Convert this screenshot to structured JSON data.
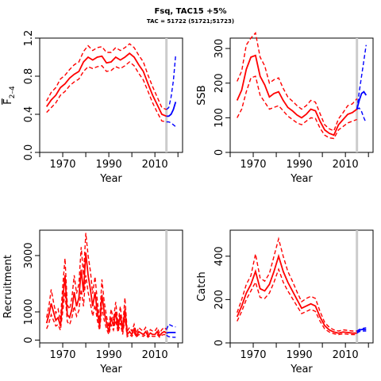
{
  "header": {
    "title": "Fsq, TAC15 +5%",
    "subtitle": "TAC = 51722 (51721;51723)"
  },
  "colors": {
    "historical": "#ff0000",
    "projection": "#0000ff",
    "reference_line": "#cccccc",
    "axis": "#000000"
  },
  "chart_data": [
    {
      "type": "line",
      "name": "fbar",
      "xlabel": "Year",
      "ylabel": "F2-4",
      "ylabel_main": "F",
      "ylabel_sub": "2–4",
      "xlim": [
        1960,
        2022
      ],
      "ylim": [
        0,
        1.2
      ],
      "xticks": [
        1970,
        1990,
        2010
      ],
      "yticks": [
        0.0,
        0.4,
        0.8,
        1.2
      ],
      "ytick_labels": [
        "0.0",
        "0.4",
        "0.8",
        "1.2"
      ],
      "reference_year": 2015,
      "historical": {
        "x": [
          1963,
          1965,
          1967,
          1969,
          1971,
          1973,
          1975,
          1977,
          1979,
          1981,
          1983,
          1985,
          1987,
          1989,
          1991,
          1993,
          1995,
          1997,
          1999,
          2001,
          2003,
          2005,
          2007,
          2009,
          2011,
          2013,
          2015
        ],
        "median": [
          0.48,
          0.55,
          0.6,
          0.68,
          0.72,
          0.78,
          0.82,
          0.85,
          0.95,
          1.0,
          0.97,
          1.0,
          1.01,
          0.94,
          0.95,
          1.0,
          0.97,
          1.0,
          1.04,
          1.0,
          0.92,
          0.85,
          0.72,
          0.6,
          0.5,
          0.4,
          0.38
        ],
        "lower": [
          0.42,
          0.47,
          0.52,
          0.6,
          0.64,
          0.7,
          0.74,
          0.77,
          0.85,
          0.9,
          0.88,
          0.9,
          0.91,
          0.85,
          0.86,
          0.9,
          0.88,
          0.91,
          0.95,
          0.91,
          0.83,
          0.76,
          0.64,
          0.52,
          0.42,
          0.33,
          0.32
        ],
        "upper": [
          0.54,
          0.63,
          0.68,
          0.77,
          0.81,
          0.87,
          0.92,
          0.95,
          1.06,
          1.12,
          1.07,
          1.1,
          1.11,
          1.05,
          1.05,
          1.1,
          1.07,
          1.1,
          1.14,
          1.1,
          1.02,
          0.95,
          0.81,
          0.69,
          0.58,
          0.47,
          0.45
        ]
      },
      "projection": {
        "x": [
          2015,
          2016,
          2017,
          2018,
          2019
        ],
        "median": [
          0.38,
          0.38,
          0.4,
          0.45,
          0.53
        ],
        "lower": [
          0.32,
          0.32,
          0.31,
          0.29,
          0.27
        ],
        "upper": [
          0.45,
          0.47,
          0.58,
          0.75,
          1.02
        ]
      }
    },
    {
      "type": "line",
      "name": "ssb",
      "xlabel": "Year",
      "ylabel": "SSB",
      "xlim": [
        1960,
        2022
      ],
      "ylim": [
        0,
        330
      ],
      "xticks": [
        1970,
        1990,
        2010
      ],
      "yticks": [
        0,
        100,
        200,
        300
      ],
      "ytick_labels": [
        "0",
        "100",
        "200",
        "300"
      ],
      "reference_year": 2015,
      "historical": {
        "x": [
          1963,
          1965,
          1967,
          1969,
          1971,
          1973,
          1975,
          1977,
          1979,
          1981,
          1983,
          1985,
          1987,
          1989,
          1991,
          1993,
          1995,
          1997,
          1999,
          2001,
          2003,
          2005,
          2007,
          2009,
          2011,
          2013,
          2015
        ],
        "median": [
          150,
          180,
          240,
          275,
          280,
          220,
          195,
          160,
          170,
          175,
          150,
          130,
          120,
          108,
          100,
          110,
          125,
          120,
          90,
          65,
          55,
          50,
          80,
          95,
          110,
          115,
          125
        ],
        "lower": [
          100,
          125,
          175,
          215,
          220,
          165,
          145,
          125,
          130,
          135,
          120,
          105,
          95,
          85,
          80,
          90,
          100,
          98,
          70,
          50,
          42,
          40,
          65,
          75,
          85,
          90,
          95
        ],
        "upper": [
          205,
          235,
          310,
          330,
          345,
          275,
          250,
          200,
          210,
          215,
          185,
          160,
          148,
          135,
          125,
          135,
          150,
          145,
          112,
          80,
          68,
          62,
          97,
          115,
          135,
          140,
          155
        ]
      },
      "projection": {
        "x": [
          2015,
          2016,
          2017,
          2018,
          2019
        ],
        "median": [
          125,
          150,
          170,
          175,
          165
        ],
        "lower": [
          125,
          128,
          118,
          100,
          85
        ],
        "upper": [
          125,
          175,
          220,
          265,
          310
        ]
      }
    },
    {
      "type": "line",
      "name": "recruitment",
      "xlabel": "Year",
      "ylabel": "Recruitment",
      "xlim": [
        1960,
        2022
      ],
      "ylim": [
        -100,
        3900
      ],
      "xticks": [
        1970,
        1990,
        2010
      ],
      "yticks": [
        0,
        1000,
        3000
      ],
      "ytick_labels": [
        "0",
        "1000",
        "3000"
      ],
      "reference_year": 2015,
      "historical": {
        "x": [
          1963,
          1964,
          1965,
          1966,
          1967,
          1968,
          1969,
          1970,
          1971,
          1972,
          1973,
          1974,
          1975,
          1976,
          1977,
          1978,
          1979,
          1980,
          1981,
          1982,
          1983,
          1984,
          1985,
          1986,
          1987,
          1988,
          1989,
          1990,
          1991,
          1992,
          1993,
          1994,
          1995,
          1996,
          1997,
          1998,
          1999,
          2000,
          2001,
          2002,
          2003,
          2004,
          2005,
          2006,
          2007,
          2008,
          2009,
          2010,
          2011,
          2012,
          2013,
          2014,
          2015
        ],
        "median": [
          600,
          900,
          1300,
          1000,
          700,
          800,
          500,
          1400,
          2300,
          900,
          800,
          1100,
          1700,
          1200,
          1500,
          2500,
          1700,
          3100,
          2300,
          1800,
          1200,
          1700,
          1000,
          500,
          1600,
          1000,
          600,
          300,
          800,
          500,
          1000,
          400,
          900,
          300,
          1100,
          200,
          300,
          200,
          400,
          150,
          300,
          250,
          200,
          300,
          150,
          250,
          200,
          200,
          300,
          150,
          250,
          300,
          250
        ],
        "lower": [
          400,
          600,
          900,
          700,
          500,
          550,
          350,
          1000,
          1700,
          650,
          550,
          800,
          1200,
          850,
          1050,
          1800,
          1200,
          2300,
          1700,
          1300,
          850,
          1250,
          700,
          350,
          1150,
          700,
          400,
          200,
          550,
          350,
          700,
          280,
          600,
          200,
          750,
          120,
          200,
          130,
          270,
          100,
          200,
          170,
          130,
          200,
          100,
          170,
          130,
          130,
          200,
          100,
          170,
          200,
          170
        ],
        "upper": [
          800,
          1200,
          1800,
          1350,
          950,
          1100,
          700,
          1900,
          2900,
          1250,
          1100,
          1500,
          2300,
          1650,
          2000,
          3300,
          2300,
          3800,
          3000,
          2450,
          1650,
          2250,
          1400,
          700,
          2150,
          1350,
          850,
          450,
          1100,
          700,
          1350,
          580,
          1200,
          450,
          1500,
          320,
          450,
          320,
          560,
          240,
          450,
          370,
          320,
          450,
          240,
          370,
          320,
          320,
          450,
          240,
          370,
          450,
          370
        ]
      },
      "projection": {
        "x": [
          2015,
          2016,
          2017,
          2018,
          2019
        ],
        "median": [
          250,
          270,
          270,
          270,
          270
        ],
        "lower": [
          170,
          120,
          110,
          100,
          100
        ],
        "upper": [
          370,
          560,
          520,
          480,
          470
        ]
      }
    },
    {
      "type": "line",
      "name": "catch",
      "xlabel": "Year",
      "ylabel": "Catch",
      "xlim": [
        1960,
        2022
      ],
      "ylim": [
        0,
        520
      ],
      "xticks": [
        1970,
        1990,
        2010
      ],
      "yticks": [
        0,
        200,
        400
      ],
      "ytick_labels": [
        "0",
        "200",
        "400"
      ],
      "reference_year": 2015,
      "historical": {
        "x": [
          1963,
          1965,
          1967,
          1969,
          1971,
          1973,
          1975,
          1977,
          1979,
          1981,
          1983,
          1985,
          1987,
          1989,
          1991,
          1993,
          1995,
          1997,
          1999,
          2001,
          2003,
          2005,
          2007,
          2009,
          2011,
          2013,
          2015
        ],
        "median": [
          120,
          170,
          230,
          270,
          330,
          250,
          240,
          270,
          330,
          400,
          330,
          280,
          240,
          200,
          160,
          170,
          180,
          170,
          120,
          80,
          60,
          50,
          45,
          50,
          48,
          45,
          45
        ],
        "lower": [
          100,
          145,
          200,
          240,
          280,
          210,
          205,
          230,
          280,
          340,
          280,
          240,
          205,
          170,
          135,
          145,
          155,
          145,
          100,
          65,
          50,
          42,
          38,
          42,
          40,
          38,
          38
        ],
        "upper": [
          140,
          200,
          270,
          310,
          410,
          300,
          285,
          320,
          400,
          480,
          400,
          330,
          285,
          235,
          190,
          205,
          215,
          205,
          145,
          95,
          72,
          60,
          55,
          60,
          58,
          55,
          55
        ]
      },
      "projection": {
        "x": [
          2015,
          2016,
          2017,
          2018,
          2019
        ],
        "median": [
          50,
          58,
          62,
          62,
          62
        ],
        "lower": [
          45,
          52,
          55,
          55,
          55
        ],
        "upper": [
          55,
          62,
          65,
          68,
          70
        ]
      }
    }
  ]
}
